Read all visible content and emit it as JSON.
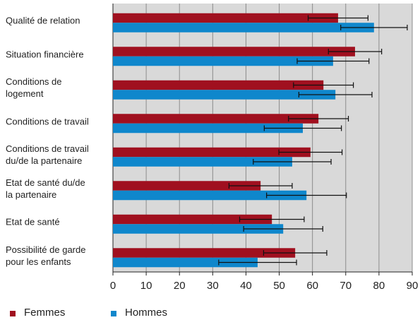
{
  "chart_data": {
    "type": "bar",
    "orientation": "horizontal",
    "categories": [
      "Qualité de relation",
      "Situation financière",
      "Conditions de\nlogement",
      "Conditions de travail",
      "Conditions de travail\ndu/de la partenaire",
      "Etat de santé du/de\nla partenaire",
      "Etat de santé",
      "Possibilité de garde\npour les enfants"
    ],
    "series": [
      {
        "name": "Femmes",
        "color": "#a0101f",
        "values": [
          67.7,
          72.8,
          63.3,
          61.8,
          59.4,
          44.4,
          47.8,
          54.8
        ],
        "errors": [
          9,
          8,
          9,
          9,
          9.5,
          9.5,
          9.7,
          9.5
        ]
      },
      {
        "name": "Hommes",
        "color": "#0f87cc",
        "values": [
          78.5,
          66.2,
          66.9,
          57.1,
          53.9,
          58.2,
          51.2,
          43.5
        ],
        "errors": [
          10,
          10.8,
          11,
          11.6,
          11.7,
          12,
          11.9,
          11.7
        ]
      }
    ],
    "xlim": [
      0,
      90
    ],
    "xticks": [
      0,
      10,
      20,
      30,
      40,
      50,
      60,
      70,
      80,
      90
    ],
    "grid": true,
    "legend": "bottom"
  }
}
